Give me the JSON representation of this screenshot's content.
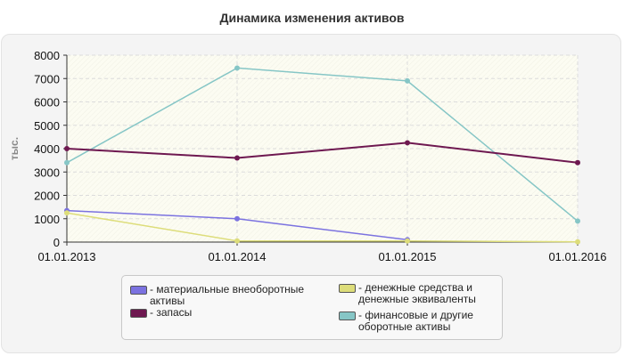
{
  "chart_data": {
    "type": "line",
    "title": "Динамика изменения активов",
    "ylabel": "тыс.",
    "xlabel": "",
    "x": [
      "01.01.2013",
      "01.01.2014",
      "01.01.2015",
      "01.01.2016"
    ],
    "ylim": [
      0,
      8000
    ],
    "yticks": [
      "0",
      "1000",
      "2000",
      "3000",
      "4000",
      "5000",
      "6000",
      "7000",
      "8000"
    ],
    "grid": true,
    "legend_position": "bottom",
    "series": [
      {
        "name": "- материальные внеоборотные активы",
        "color": "#7b72e0",
        "values": [
          1350,
          1000,
          100,
          null
        ]
      },
      {
        "name": "- запасы",
        "color": "#6e1850",
        "values": [
          4000,
          3600,
          4250,
          3400
        ]
      },
      {
        "name": "- денежные средства и денежные эквиваленты",
        "color": "#dddd7a",
        "values": [
          1250,
          50,
          50,
          10
        ]
      },
      {
        "name": "- финансовые и другие оборотные активы",
        "color": "#86c6c6",
        "values": [
          3400,
          7450,
          6900,
          900
        ]
      }
    ]
  }
}
